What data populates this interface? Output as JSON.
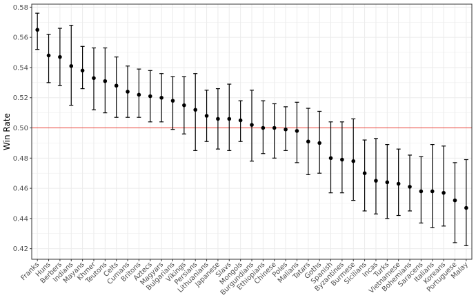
{
  "chart_data": {
    "type": "scatter",
    "title": "",
    "xlabel": "",
    "ylabel": "Win Rate",
    "ylim": [
      0.413,
      0.582
    ],
    "yticks": [
      0.42,
      0.44,
      0.46,
      0.48,
      0.5,
      0.52,
      0.54,
      0.56,
      0.58
    ],
    "ytick_labels": [
      "0.42",
      "0.44",
      "0.46",
      "0.48",
      "0.50",
      "0.52",
      "0.54",
      "0.56",
      "0.58"
    ],
    "reference_line": {
      "y": 0.5,
      "color": "#e8392e"
    },
    "grid": true,
    "legend": "none",
    "error_bars": true,
    "categories": [
      "Franks",
      "Huns",
      "Berbers",
      "Indians",
      "Mayans",
      "Khmer",
      "Teutons",
      "Celts",
      "Cumans",
      "Britons",
      "Aztecs",
      "Magyars",
      "Bulgarians",
      "Vikings",
      "Persians",
      "Lithuanians",
      "Japanese",
      "Slavs",
      "Mongols",
      "Burgundians",
      "Ethiopians",
      "Chinese",
      "Poles",
      "Malians",
      "Tatars",
      "Goths",
      "Spanish",
      "Byzantines",
      "Burmese",
      "Sicilians",
      "Incas",
      "Turks",
      "Vietnamese",
      "Bohemians",
      "Saracens",
      "Italians",
      "Koreans",
      "Portuguese",
      "Malay"
    ],
    "values": [
      0.565,
      0.548,
      0.547,
      0.541,
      0.538,
      0.533,
      0.531,
      0.528,
      0.524,
      0.522,
      0.521,
      0.52,
      0.518,
      0.515,
      0.512,
      0.508,
      0.506,
      0.506,
      0.505,
      0.502,
      0.5,
      0.5,
      0.499,
      0.498,
      0.491,
      0.49,
      0.48,
      0.479,
      0.478,
      0.47,
      0.465,
      0.464,
      0.463,
      0.461,
      0.458,
      0.458,
      0.457,
      0.452,
      0.447
    ],
    "lower": [
      0.552,
      0.53,
      0.528,
      0.515,
      0.526,
      0.512,
      0.51,
      0.507,
      0.507,
      0.507,
      0.504,
      0.504,
      0.499,
      0.496,
      0.485,
      0.491,
      0.486,
      0.485,
      0.491,
      0.478,
      0.483,
      0.48,
      0.485,
      0.477,
      0.469,
      0.47,
      0.457,
      0.457,
      0.452,
      0.445,
      0.443,
      0.44,
      0.442,
      0.445,
      0.437,
      0.434,
      0.435,
      0.424,
      0.422
    ],
    "upper": [
      0.576,
      0.562,
      0.566,
      0.568,
      0.554,
      0.553,
      0.553,
      0.547,
      0.541,
      0.539,
      0.538,
      0.536,
      0.534,
      0.534,
      0.536,
      0.525,
      0.526,
      0.529,
      0.518,
      0.525,
      0.518,
      0.516,
      0.514,
      0.517,
      0.513,
      0.511,
      0.504,
      0.504,
      0.506,
      0.492,
      0.493,
      0.489,
      0.486,
      0.482,
      0.481,
      0.489,
      0.488,
      0.477,
      0.479
    ],
    "colors": {
      "points": "#000000",
      "grid": "#ebebeb",
      "panel_border": "#333333",
      "reference_line": "#e8392e"
    }
  }
}
